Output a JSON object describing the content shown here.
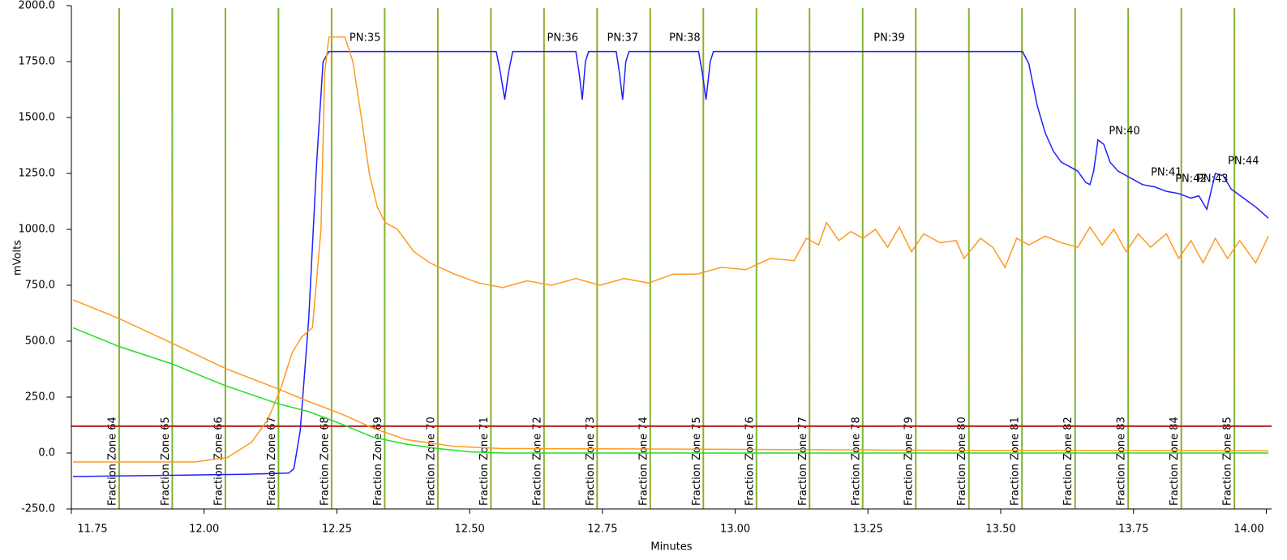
{
  "chart_data": {
    "type": "line",
    "xlabel": "Minutes",
    "ylabel": "mVolts",
    "xlim": [
      11.75,
      14.01
    ],
    "ylim": [
      -250,
      2000
    ],
    "xticks": [
      11.75,
      {
        "value": 12.0,
        "label": "12.00"
      },
      12.25,
      {
        "value": 12.5,
        "label": "12.50"
      },
      12.75,
      {
        "value": 13.0,
        "label": "13.00"
      },
      13.25,
      {
        "value": 13.5,
        "label": "13.50"
      },
      13.75,
      {
        "value": 14.0,
        "label": "14.00"
      }
    ],
    "yticks": [
      {
        "value": -250,
        "label": "-250.0"
      },
      {
        "value": 0,
        "label": "0.0"
      },
      {
        "value": 250,
        "label": "250.0"
      },
      {
        "value": 500,
        "label": "500.0"
      },
      {
        "value": 750,
        "label": "750.0"
      },
      {
        "value": 1000,
        "label": "1000.0"
      },
      {
        "value": 1250,
        "label": "1250.0"
      },
      {
        "value": 1500,
        "label": "1500.0"
      },
      {
        "value": 1750,
        "label": "1750.0"
      },
      {
        "value": 2000,
        "label": "2000.0"
      }
    ],
    "series": [
      {
        "color": "#1f1fff",
        "x": [
          11.753,
          11.922,
          12.075,
          12.159,
          12.169,
          12.181,
          12.197,
          12.212,
          12.224,
          12.235,
          12.55,
          12.558,
          12.566,
          12.573,
          12.581,
          12.7,
          12.706,
          12.712,
          12.718,
          12.724,
          12.776,
          12.782,
          12.788,
          12.794,
          12.8,
          12.931,
          12.938,
          12.945,
          12.953,
          12.959,
          13.541,
          13.553,
          13.569,
          13.584,
          13.599,
          13.614,
          13.63,
          13.645,
          13.66,
          13.668,
          13.675,
          13.683,
          13.694,
          13.706,
          13.721,
          13.744,
          13.767,
          13.79,
          13.812,
          13.835,
          13.858,
          13.873,
          13.888,
          13.904,
          13.919,
          13.934,
          13.957,
          13.98,
          14.004
        ],
        "values": [
          -105,
          -100,
          -95,
          -90,
          -70,
          100,
          600,
          1300,
          1750,
          1795,
          1795,
          1700,
          1580,
          1700,
          1795,
          1795,
          1700,
          1580,
          1750,
          1795,
          1795,
          1700,
          1580,
          1750,
          1795,
          1795,
          1700,
          1580,
          1750,
          1795,
          1795,
          1740,
          1550,
          1430,
          1350,
          1300,
          1280,
          1260,
          1210,
          1200,
          1260,
          1400,
          1380,
          1300,
          1260,
          1230,
          1200,
          1190,
          1170,
          1160,
          1140,
          1150,
          1090,
          1250,
          1240,
          1180,
          1140,
          1100,
          1050
        ]
      },
      {
        "color": "#ff9a1f",
        "x": [
          11.753,
          11.983,
          12.044,
          12.09,
          12.12,
          12.143,
          12.166,
          12.184,
          12.204,
          12.22,
          12.227,
          12.235,
          12.265,
          12.28,
          12.296,
          12.311,
          12.326,
          12.341,
          12.364,
          12.395,
          12.425,
          12.471,
          12.517,
          12.562,
          12.608,
          12.654,
          12.7,
          12.745,
          12.791,
          12.837,
          12.883,
          12.928,
          12.974,
          13.02,
          13.066,
          13.111,
          13.134,
          13.157,
          13.172,
          13.195,
          13.218,
          13.241,
          13.264,
          13.287,
          13.309,
          13.332,
          13.355,
          13.386,
          13.416,
          13.431,
          13.462,
          13.485,
          13.508,
          13.53,
          13.553,
          13.584,
          13.614,
          13.645,
          13.668,
          13.691,
          13.713,
          13.736,
          13.759,
          13.782,
          13.812,
          13.835,
          13.858,
          13.881,
          13.904,
          13.927,
          13.95,
          13.98,
          14.004
        ],
        "values": [
          -40,
          -40,
          -20,
          50,
          150,
          280,
          450,
          520,
          560,
          1000,
          1700,
          1860,
          1860,
          1750,
          1500,
          1250,
          1100,
          1030,
          1000,
          900,
          850,
          800,
          760,
          740,
          770,
          750,
          780,
          750,
          780,
          760,
          800,
          800,
          830,
          820,
          870,
          860,
          960,
          930,
          1030,
          950,
          990,
          960,
          1000,
          920,
          1010,
          900,
          980,
          940,
          950,
          870,
          960,
          920,
          830,
          960,
          930,
          970,
          940,
          920,
          1010,
          930,
          1000,
          900,
          980,
          920,
          980,
          870,
          950,
          850,
          960,
          870,
          950,
          850,
          970
        ]
      },
      {
        "color": "#ff9a1f",
        "x": [
          11.753,
          11.841,
          11.938,
          12.041,
          12.14,
          12.197,
          12.258,
          12.319,
          12.38,
          12.471,
          12.562,
          12.837,
          13.142,
          13.447,
          14.004
        ],
        "values": [
          685,
          600,
          493,
          377,
          286,
          230,
          175,
          110,
          60,
          30,
          20,
          18,
          15,
          12,
          10
        ]
      },
      {
        "color": "#22dd22",
        "x": [
          11.753,
          11.841,
          11.938,
          12.041,
          12.14,
          12.197,
          12.258,
          12.319,
          12.38,
          12.441,
          12.502,
          12.562,
          14.004
        ],
        "values": [
          560,
          475,
          400,
          300,
          220,
          185,
          130,
          70,
          40,
          20,
          5,
          0,
          0
        ]
      }
    ],
    "threshold": {
      "value": 120,
      "color": "#b22222"
    },
    "zone_color": "#9aa82a",
    "fraction_zones": [
      {
        "label": "Fraction Zone 64",
        "x": 11.84
      },
      {
        "label": "Fraction Zone 65",
        "x": 11.94
      },
      {
        "label": "Fraction Zone 66",
        "x": 12.04
      },
      {
        "label": "Fraction Zone 67",
        "x": 12.14
      },
      {
        "label": "Fraction Zone 68",
        "x": 12.24
      },
      {
        "label": "Fraction Zone 69",
        "x": 12.34
      },
      {
        "label": "Fraction Zone 70",
        "x": 12.44
      },
      {
        "label": "Fraction Zone 71",
        "x": 12.54
      },
      {
        "label": "Fraction Zone 72",
        "x": 12.64
      },
      {
        "label": "Fraction Zone 73",
        "x": 12.74
      },
      {
        "label": "Fraction Zone 74",
        "x": 12.84
      },
      {
        "label": "Fraction Zone 75",
        "x": 12.94
      },
      {
        "label": "Fraction Zone 76",
        "x": 13.04
      },
      {
        "label": "Fraction Zone 77",
        "x": 13.14
      },
      {
        "label": "Fraction Zone 78",
        "x": 13.24
      },
      {
        "label": "Fraction Zone 79",
        "x": 13.34
      },
      {
        "label": "Fraction Zone 80",
        "x": 13.44
      },
      {
        "label": "Fraction Zone 81",
        "x": 13.54
      },
      {
        "label": "Fraction Zone 82",
        "x": 13.64
      },
      {
        "label": "Fraction Zone 83",
        "x": 13.74
      },
      {
        "label": "Fraction Zone 84",
        "x": 13.84
      },
      {
        "label": "Fraction Zone 85",
        "x": 13.94
      }
    ],
    "annotations": [
      {
        "text": "PN:35",
        "x": 12.303,
        "y": 1855
      },
      {
        "text": "PN:36",
        "x": 12.675,
        "y": 1855
      },
      {
        "text": "PN:37",
        "x": 12.788,
        "y": 1855
      },
      {
        "text": "PN:38",
        "x": 12.905,
        "y": 1855
      },
      {
        "text": "PN:39",
        "x": 13.29,
        "y": 1855
      },
      {
        "text": "PN:40",
        "x": 13.733,
        "y": 1438
      },
      {
        "text": "PN:41",
        "x": 13.812,
        "y": 1254
      },
      {
        "text": "PN:42",
        "x": 13.858,
        "y": 1225
      },
      {
        "text": "PN:43",
        "x": 13.899,
        "y": 1225
      },
      {
        "text": "PN:44",
        "x": 13.957,
        "y": 1304
      }
    ]
  }
}
